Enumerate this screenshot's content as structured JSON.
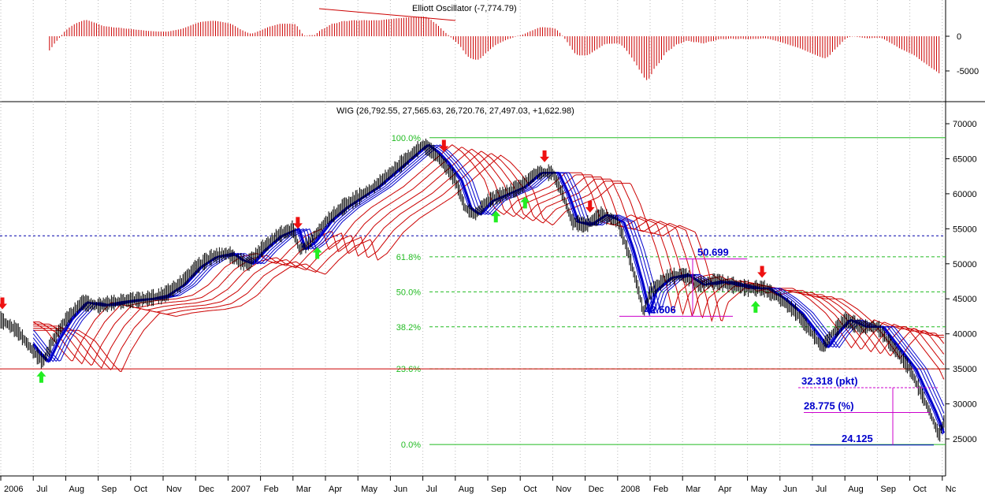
{
  "oscillator": {
    "title": "Elliott Oscillator (-7,774.79)",
    "ticks": [
      "0",
      "-5000"
    ],
    "tick_values": [
      0,
      -5000
    ]
  },
  "chart_data": {
    "type": "line",
    "title": "WIG (26,792.55, 27,565.63, 26,720.76, 27,497.03, +1,622.98)",
    "x_labels": [
      "2006",
      "Jul",
      "Aug",
      "Sep",
      "Oct",
      "Nov",
      "Dec",
      "2007",
      "Feb",
      "Mar",
      "Apr",
      "May",
      "Jun",
      "Jul",
      "Aug",
      "Sep",
      "Oct",
      "Nov",
      "Dec",
      "2008",
      "Feb",
      "Mar",
      "Apr",
      "May",
      "Jun",
      "Jul",
      "Aug",
      "Sep",
      "Oct",
      "Nc"
    ],
    "y_ticks": [
      70000,
      65000,
      60000,
      55000,
      50000,
      45000,
      40000,
      35000,
      30000,
      25000
    ],
    "y_tick_labels": [
      "70000",
      "65000",
      "60000",
      "55000",
      "50000",
      "45000",
      "40000",
      "35000",
      "30000",
      "25000"
    ],
    "ylim": [
      21300,
      71300
    ],
    "price_series": [
      {
        "t": 0.0,
        "v": 42000
      },
      {
        "t": 0.5,
        "v": 40500
      },
      {
        "t": 1.0,
        "v": 37500
      },
      {
        "t": 1.3,
        "v": 36000
      },
      {
        "t": 1.6,
        "v": 39000
      },
      {
        "t": 2.0,
        "v": 42000
      },
      {
        "t": 2.5,
        "v": 44500
      },
      {
        "t": 3.0,
        "v": 44000
      },
      {
        "t": 3.5,
        "v": 44500
      },
      {
        "t": 4.0,
        "v": 44800
      },
      {
        "t": 4.5,
        "v": 45000
      },
      {
        "t": 5.0,
        "v": 45500
      },
      {
        "t": 5.5,
        "v": 47000
      },
      {
        "t": 6.0,
        "v": 49500
      },
      {
        "t": 6.5,
        "v": 51000
      },
      {
        "t": 7.0,
        "v": 51500
      },
      {
        "t": 7.3,
        "v": 50500
      },
      {
        "t": 7.6,
        "v": 50000
      },
      {
        "t": 8.0,
        "v": 52000
      },
      {
        "t": 8.5,
        "v": 54000
      },
      {
        "t": 9.0,
        "v": 55000
      },
      {
        "t": 9.2,
        "v": 52000
      },
      {
        "t": 9.5,
        "v": 53000
      },
      {
        "t": 10.0,
        "v": 56000
      },
      {
        "t": 10.5,
        "v": 58000
      },
      {
        "t": 11.0,
        "v": 59500
      },
      {
        "t": 11.5,
        "v": 61000
      },
      {
        "t": 12.0,
        "v": 63000
      },
      {
        "t": 12.5,
        "v": 65000
      },
      {
        "t": 13.0,
        "v": 67000
      },
      {
        "t": 13.3,
        "v": 66000
      },
      {
        "t": 13.6,
        "v": 64500
      },
      {
        "t": 14.0,
        "v": 62000
      },
      {
        "t": 14.3,
        "v": 58000
      },
      {
        "t": 14.6,
        "v": 57000
      },
      {
        "t": 15.0,
        "v": 59000
      },
      {
        "t": 15.5,
        "v": 60000
      },
      {
        "t": 16.0,
        "v": 61000
      },
      {
        "t": 16.5,
        "v": 63000
      },
      {
        "t": 17.0,
        "v": 63000
      },
      {
        "t": 17.3,
        "v": 60000
      },
      {
        "t": 17.6,
        "v": 56000
      },
      {
        "t": 18.0,
        "v": 55500
      },
      {
        "t": 18.5,
        "v": 57000
      },
      {
        "t": 19.0,
        "v": 56000
      },
      {
        "t": 19.3,
        "v": 52000
      },
      {
        "t": 19.6,
        "v": 47000
      },
      {
        "t": 19.8,
        "v": 43000
      },
      {
        "t": 20.0,
        "v": 46000
      },
      {
        "t": 20.5,
        "v": 48000
      },
      {
        "t": 21.0,
        "v": 48500
      },
      {
        "t": 21.5,
        "v": 47000
      },
      {
        "t": 22.0,
        "v": 47500
      },
      {
        "t": 22.5,
        "v": 47000
      },
      {
        "t": 23.0,
        "v": 46500
      },
      {
        "t": 23.5,
        "v": 46500
      },
      {
        "t": 24.0,
        "v": 45000
      },
      {
        "t": 24.5,
        "v": 43000
      },
      {
        "t": 25.0,
        "v": 40000
      },
      {
        "t": 25.3,
        "v": 38000
      },
      {
        "t": 25.6,
        "v": 40000
      },
      {
        "t": 26.0,
        "v": 42000
      },
      {
        "t": 26.5,
        "v": 41000
      },
      {
        "t": 27.0,
        "v": 41000
      },
      {
        "t": 27.5,
        "v": 38000
      },
      {
        "t": 28.0,
        "v": 35000
      },
      {
        "t": 28.3,
        "v": 32000
      },
      {
        "t": 28.6,
        "v": 29000
      },
      {
        "t": 28.9,
        "v": 25500
      },
      {
        "t": 29.05,
        "v": 27500
      }
    ],
    "fibonacci": [
      {
        "label": "100.0%",
        "value": 68000
      },
      {
        "label": "61.8%",
        "value": 51000
      },
      {
        "label": "50.0%",
        "value": 46000
      },
      {
        "label": "38.2%",
        "value": 41000
      },
      {
        "label": "23.6%",
        "value": 35000
      },
      {
        "label": "0.0%",
        "value": 24200
      }
    ],
    "support_line": 35000,
    "resistance_dotted": 54000,
    "annotations": [
      {
        "text": "50.699",
        "value": 50699
      },
      {
        "text": "42.506",
        "value": 42506
      },
      {
        "text": "32.318 (pkt)",
        "value": 32318
      },
      {
        "text": "28.775 (%)",
        "value": 28775
      },
      {
        "text": "24.125",
        "value": 24125
      }
    ],
    "sell_arrows_t": [
      0.0,
      9.1,
      13.6,
      16.7,
      18.1,
      23.4
    ],
    "buy_arrows_t": [
      1.2,
      9.7,
      15.2,
      16.1,
      23.2
    ],
    "colors": {
      "price": "#000000",
      "fast_ma": "#0000cc",
      "slow_ma": "#cc0000",
      "fib": "#22bb22",
      "arrow_up": "#22ee22",
      "arrow_down": "#ee1111",
      "annotation_text": "#0000cc",
      "annotation_line": "#cc00cc"
    }
  }
}
